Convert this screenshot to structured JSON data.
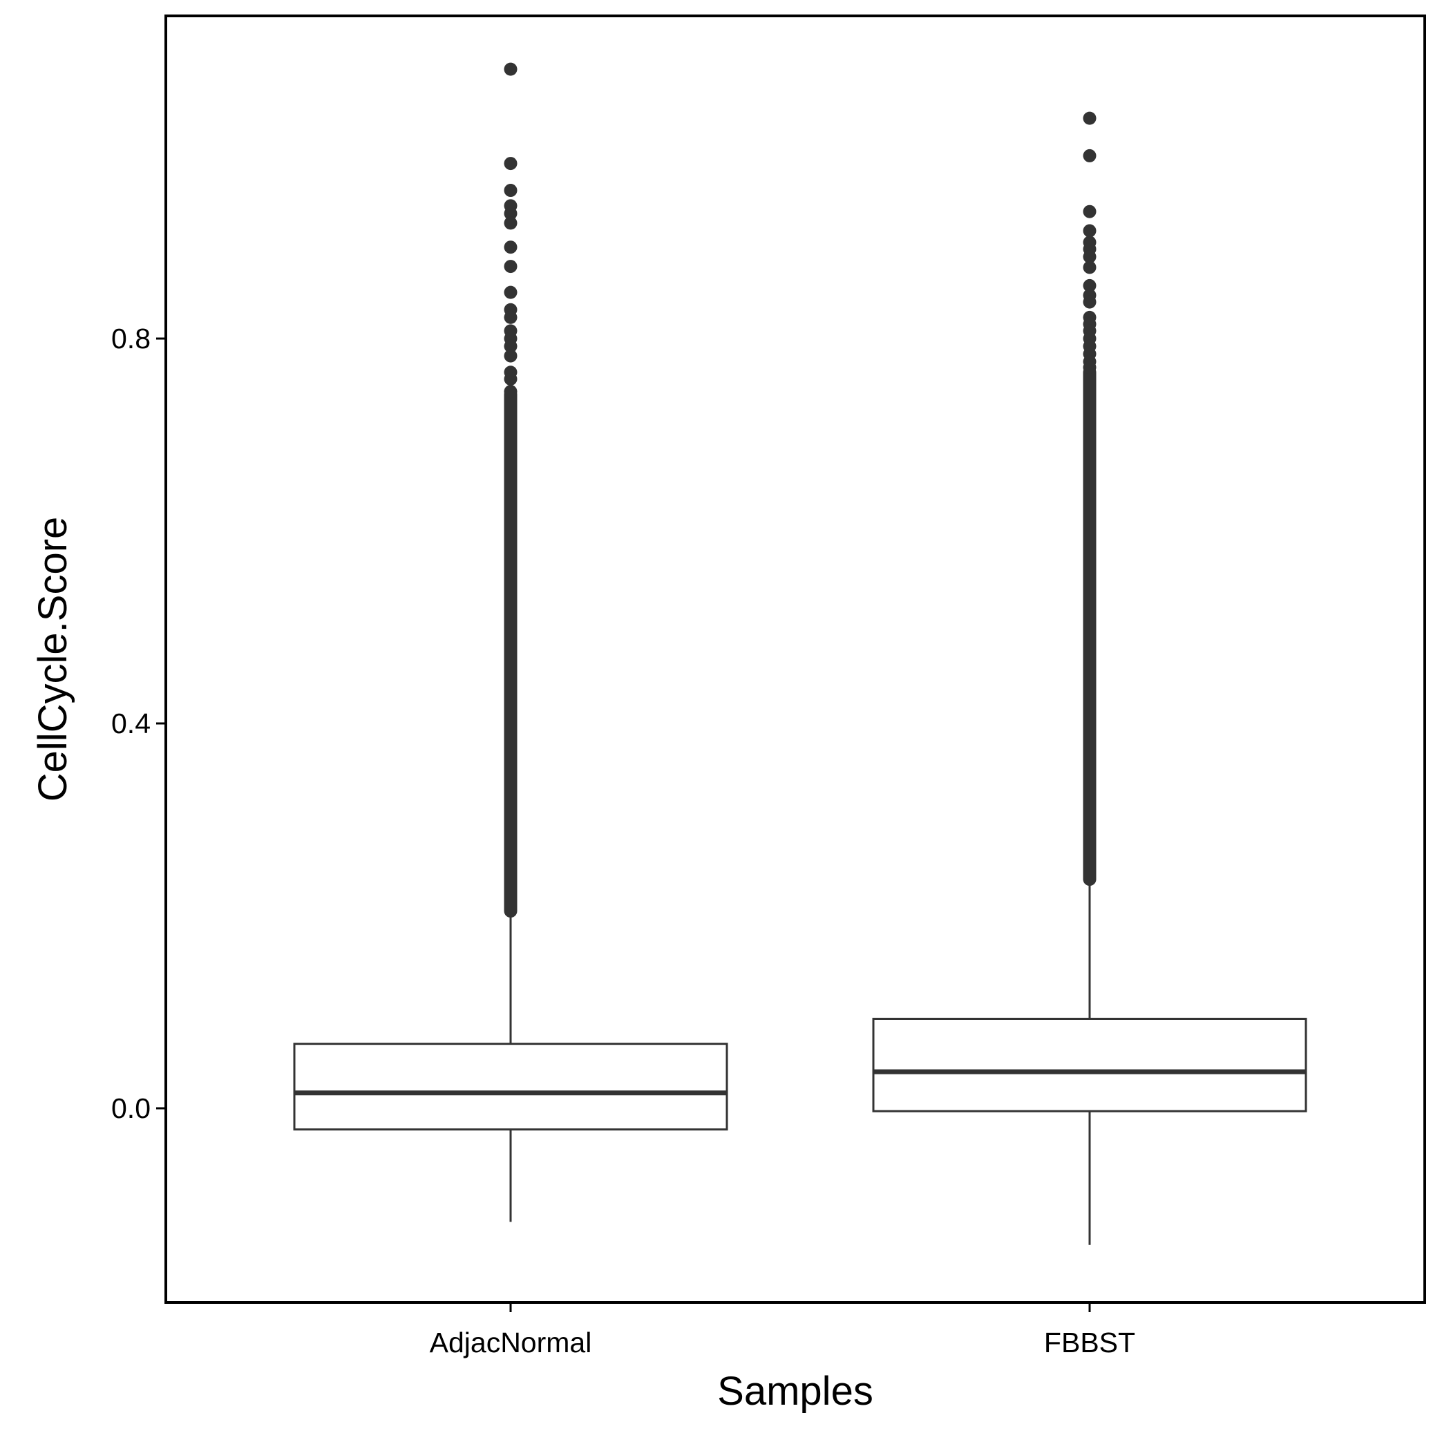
{
  "chart_data": {
    "type": "box",
    "xlabel": "Samples",
    "ylabel": "CellCycle.Score",
    "ylim": [
      -0.2,
      1.14
    ],
    "yticks": [
      "0.0",
      "0.4",
      "0.8"
    ],
    "grid": false,
    "legend": "none",
    "colors": {
      "stroke": "#333333",
      "frame": "#000000",
      "background": "#ffffff"
    },
    "categories": [
      "AdjacNormal",
      "FBBST"
    ],
    "boxes": [
      {
        "name": "AdjacNormal",
        "whisker_low": -0.118,
        "q1": -0.022,
        "median": 0.016,
        "q3": 0.067,
        "whisker_high": 0.2,
        "outliers": [
          1.08,
          0.982,
          0.954,
          0.938,
          0.93,
          0.92,
          0.895,
          0.875,
          0.848,
          0.83,
          0.822,
          0.808,
          0.8,
          0.792,
          0.782,
          0.765,
          0.758,
          0.745
        ],
        "outlier_band": [
          0.205,
          0.742
        ]
      },
      {
        "name": "FBBST",
        "whisker_low": -0.142,
        "q1": -0.003,
        "median": 0.038,
        "q3": 0.093,
        "whisker_high": 0.235,
        "outliers": [
          1.029,
          0.99,
          0.932,
          0.912,
          0.9,
          0.893,
          0.885,
          0.874,
          0.855,
          0.845,
          0.838,
          0.822,
          0.815,
          0.808,
          0.8,
          0.792,
          0.784,
          0.776,
          0.77
        ],
        "outlier_band": [
          0.238,
          0.765
        ]
      }
    ]
  }
}
